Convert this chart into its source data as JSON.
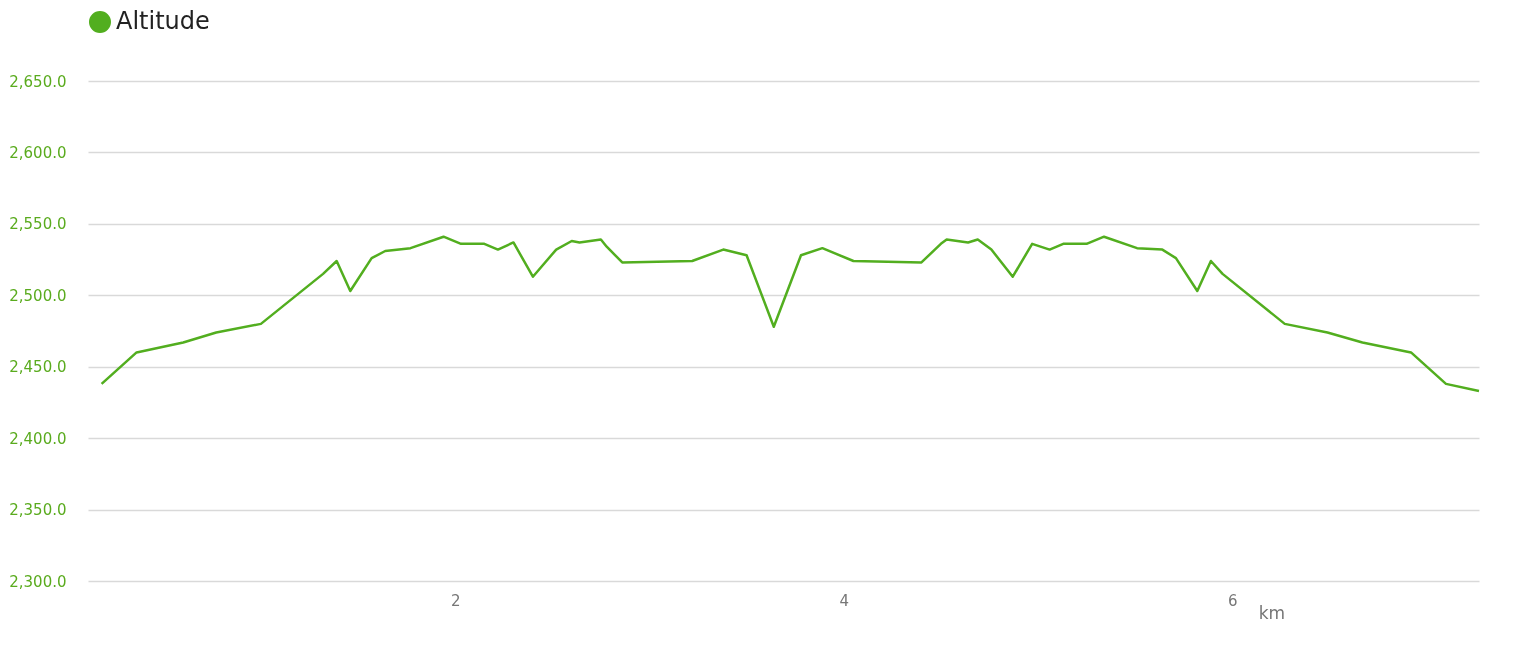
{
  "chart_data": {
    "type": "line",
    "xlabel": "km",
    "legend": "top left",
    "grid": "y",
    "marker": "none",
    "line_style": "solid",
    "xlim": [
      0.11,
      7.27
    ],
    "xticks": [
      2,
      4,
      6
    ],
    "ylim": [
      2300,
      2650
    ],
    "yticks": [
      {
        "value": 2300,
        "label": "2,300.0"
      },
      {
        "value": 2350,
        "label": "2,350.0"
      },
      {
        "value": 2400,
        "label": "2,400.0"
      },
      {
        "value": 2450,
        "label": "2,450.0"
      },
      {
        "value": 2500,
        "label": "2,500.0"
      },
      {
        "value": 2550,
        "label": "2,550.0"
      },
      {
        "value": 2600,
        "label": "2,600.0"
      },
      {
        "value": 2650,
        "label": "2,650.0"
      }
    ],
    "x": [
      0.18,
      0.36,
      0.6,
      0.77,
      1.0,
      1.32,
      1.39,
      1.46,
      1.57,
      1.64,
      1.77,
      1.94,
      2.03,
      2.15,
      2.22,
      2.3,
      2.4,
      2.52,
      2.6,
      2.64,
      2.75,
      2.78,
      2.86,
      3.22,
      3.38,
      3.5,
      3.64,
      3.78,
      3.89,
      4.05,
      4.4,
      4.5,
      4.53,
      4.64,
      4.69,
      4.76,
      4.87,
      4.97,
      5.06,
      5.13,
      5.25,
      5.34,
      5.51,
      5.64,
      5.71,
      5.82,
      5.89,
      5.95,
      6.27,
      6.49,
      6.67,
      6.92,
      7.1,
      7.27
    ],
    "series": [
      {
        "name": "Altitude",
        "color": "#52ae1f",
        "values": [
          2438,
          2460,
          2467,
          2474,
          2480,
          2515,
          2524,
          2503,
          2526,
          2531,
          2533,
          2541,
          2536,
          2536,
          2532,
          2537,
          2513,
          2532,
          2538,
          2537,
          2539,
          2534,
          2523,
          2524,
          2532,
          2528,
          2478,
          2528,
          2533,
          2524,
          2523,
          2536,
          2539,
          2537,
          2539,
          2532,
          2513,
          2536,
          2532,
          2536,
          2536,
          2541,
          2533,
          2532,
          2526,
          2503,
          2524,
          2515,
          2480,
          2474,
          2467,
          2460,
          2438,
          2433
        ]
      }
    ]
  }
}
